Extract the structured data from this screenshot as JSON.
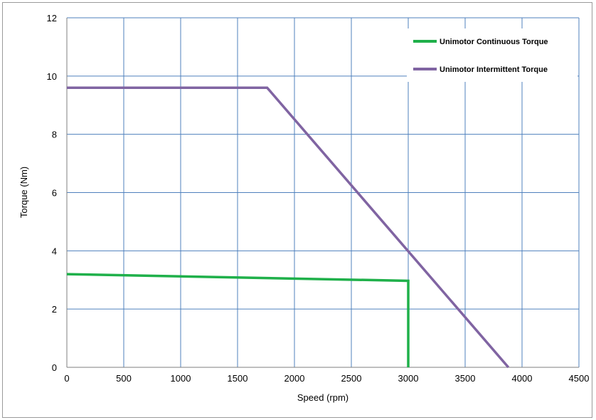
{
  "chart_data": {
    "type": "line",
    "title": "",
    "xlabel": "Speed (rpm)",
    "ylabel": "Torque (Nm)",
    "xlim": [
      0,
      4500
    ],
    "ylim": [
      0,
      12
    ],
    "xticks": [
      0,
      500,
      1000,
      1500,
      2000,
      2500,
      3000,
      3500,
      4000,
      4500
    ],
    "yticks": [
      0,
      2,
      4,
      6,
      8,
      10,
      12
    ],
    "grid": true,
    "legend_position": "top-right",
    "series": [
      {
        "name": "Unimotor Continuous Torque",
        "color": "#1fb04a",
        "x": [
          0,
          3000,
          3000
        ],
        "y": [
          3.2,
          2.97,
          0
        ]
      },
      {
        "name": "Unimotor Intermittent Torque",
        "color": "#8064a2",
        "x": [
          0,
          1760,
          3880
        ],
        "y": [
          9.6,
          9.6,
          0
        ]
      }
    ]
  }
}
